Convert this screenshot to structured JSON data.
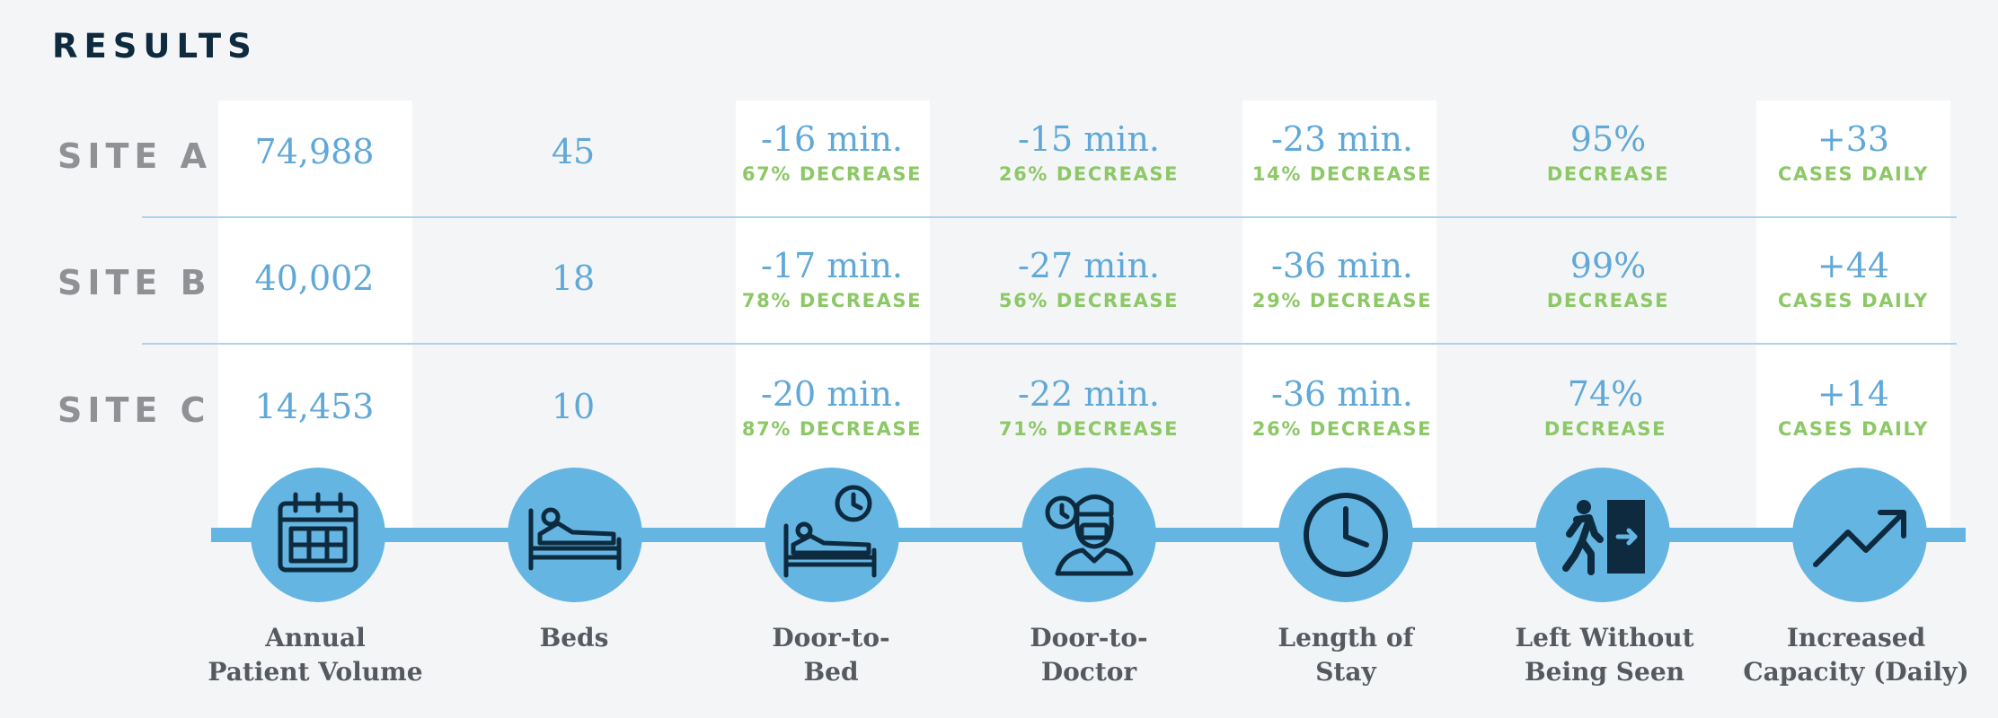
{
  "title": "RESULTS",
  "sites": [
    "SITE A",
    "SITE B",
    "SITE C"
  ],
  "columns": [
    {
      "label_line1": "Annual",
      "label_line2": "Patient Volume",
      "icon": "calendar-icon",
      "cells": [
        {
          "value": "74,988",
          "sub": ""
        },
        {
          "value": "40,002",
          "sub": ""
        },
        {
          "value": "14,453",
          "sub": ""
        }
      ]
    },
    {
      "label_line1": "Beds",
      "label_line2": "",
      "icon": "hospital-bed-icon",
      "cells": [
        {
          "value": "45",
          "sub": ""
        },
        {
          "value": "18",
          "sub": ""
        },
        {
          "value": "10",
          "sub": ""
        }
      ]
    },
    {
      "label_line1": "Door-to-",
      "label_line2": "Bed",
      "icon": "bed-with-clock-icon",
      "cells": [
        {
          "value": "-16 min.",
          "sub": "67% DECREASE"
        },
        {
          "value": "-17 min.",
          "sub": "78% DECREASE"
        },
        {
          "value": "-20 min.",
          "sub": "87% DECREASE"
        }
      ]
    },
    {
      "label_line1": "Door-to-",
      "label_line2": "Doctor",
      "icon": "doctor-with-clock-icon",
      "cells": [
        {
          "value": "-15 min.",
          "sub": "26% DECREASE"
        },
        {
          "value": "-27 min.",
          "sub": "56% DECREASE"
        },
        {
          "value": "-22 min.",
          "sub": "71% DECREASE"
        }
      ]
    },
    {
      "label_line1": "Length of",
      "label_line2": "Stay",
      "icon": "clock-icon",
      "cells": [
        {
          "value": "-23 min.",
          "sub": "14% DECREASE"
        },
        {
          "value": "-36 min.",
          "sub": "29% DECREASE"
        },
        {
          "value": "-36 min.",
          "sub": "26% DECREASE"
        }
      ]
    },
    {
      "label_line1": "Left Without",
      "label_line2": "Being Seen",
      "icon": "exit-door-icon",
      "cells": [
        {
          "value": "95%",
          "sub": "DECREASE"
        },
        {
          "value": "99%",
          "sub": "DECREASE"
        },
        {
          "value": "74%",
          "sub": "DECREASE"
        }
      ]
    },
    {
      "label_line1": "Increased",
      "label_line2": "Capacity (Daily)",
      "icon": "trend-up-icon",
      "cells": [
        {
          "value": "+33",
          "sub": "CASES DAILY"
        },
        {
          "value": "+44",
          "sub": "CASES DAILY"
        },
        {
          "value": "+14",
          "sub": "CASES DAILY"
        }
      ]
    }
  ],
  "colors": {
    "value": "#5fa8d8",
    "sub": "#8cc866",
    "site": "#8f9195",
    "accent": "#64b5e2"
  }
}
